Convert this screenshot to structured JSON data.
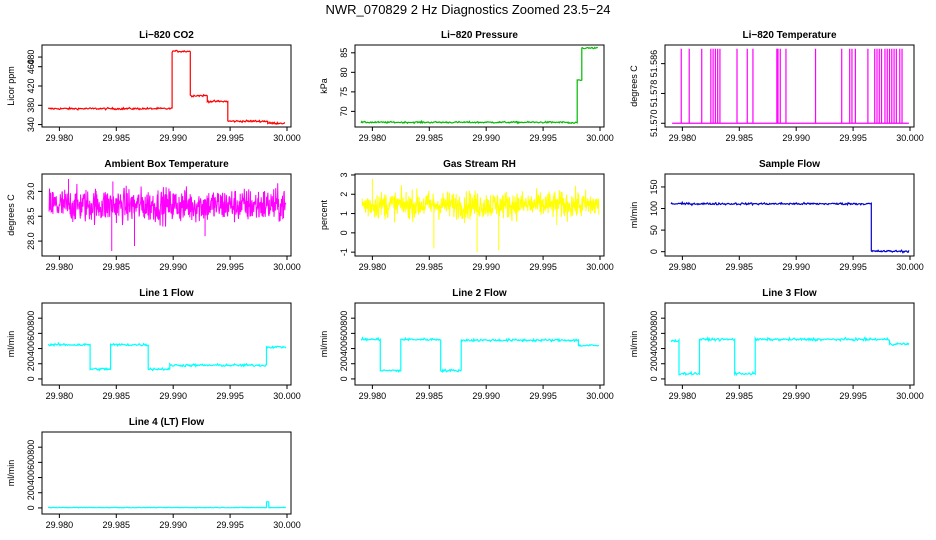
{
  "figure_title": "NWR_070829  2 Hz Diagnostics Zoomed 23.5−24",
  "chart_data": [
    {
      "type": "line",
      "title": "Li−820 CO2",
      "ylabel": "Licor ppm",
      "color": "#ff0000",
      "xlim": [
        29.979,
        30.0
      ],
      "ylim": [
        335,
        505
      ],
      "xticks": [
        "29.980",
        "29.985",
        "29.990",
        "29.995",
        "30.000"
      ],
      "yticks": [
        340,
        380,
        420,
        460,
        480
      ],
      "noise": 1,
      "segments": [
        [
          29.979,
          29.9899,
          373
        ],
        [
          29.9899,
          29.9915,
          492
        ],
        [
          29.9915,
          29.993,
          400
        ],
        [
          29.993,
          29.9948,
          388
        ],
        [
          29.9948,
          29.9983,
          347
        ],
        [
          29.9983,
          29.9998,
          343
        ]
      ]
    },
    {
      "type": "line",
      "title": "Li−820 Pressure",
      "ylabel": "kPa",
      "color": "#00bb00",
      "xlim": [
        29.979,
        30.0
      ],
      "ylim": [
        66,
        87
      ],
      "xticks": [
        "29.980",
        "29.985",
        "29.990",
        "29.995",
        "30.000"
      ],
      "yticks": [
        70,
        75,
        80,
        85
      ],
      "noise": 0.1,
      "segments": [
        [
          29.979,
          29.9972,
          67.2
        ],
        [
          29.9972,
          29.998,
          67.0
        ],
        [
          29.998,
          29.9984,
          78
        ],
        [
          29.9984,
          29.9998,
          86.2
        ]
      ]
    },
    {
      "type": "spikes",
      "title": "Li−820 Temperature",
      "ylabel": "degrees C",
      "color": "#ff00ff",
      "xlim": [
        29.979,
        30.0
      ],
      "ylim": [
        51.569,
        51.591
      ],
      "xticks": [
        "29.980",
        "29.985",
        "29.990",
        "29.995",
        "30.000"
      ],
      "yticks": [
        51.57,
        51.578,
        51.586
      ],
      "ytick_labels": [
        "51.570",
        "51.578",
        "51.586"
      ],
      "base": 51.57,
      "peak": 51.59,
      "spike_x": [
        29.9799,
        29.9806,
        29.9817,
        29.9825,
        29.9827,
        29.9829,
        29.9831,
        29.9833,
        29.9848,
        29.9857,
        29.9862,
        29.9883,
        29.9884,
        29.9886,
        29.9891,
        29.9917,
        29.994,
        29.9947,
        29.9949,
        29.9952,
        29.9963,
        29.9969,
        29.9971,
        29.9973,
        29.9975,
        29.9978,
        29.998,
        29.9982,
        29.9984,
        29.9986,
        29.9988,
        29.9991,
        29.9993
      ]
    },
    {
      "type": "noise",
      "title": "Ambient Box Temperature",
      "ylabel": "degrees C",
      "color": "#ff00ff",
      "xlim": [
        29.979,
        30.0
      ],
      "ylim": [
        27.7,
        29.35
      ],
      "xticks": [
        "29.980",
        "29.985",
        "29.990",
        "29.995",
        "30.000"
      ],
      "yticks": [
        28.0,
        28.5,
        29.0
      ],
      "ytick_labels": [
        "28.0",
        "28.5",
        "29.0"
      ],
      "mean": 28.72,
      "noise": 0.17,
      "outliers": [
        [
          29.9846,
          27.8
        ],
        [
          29.9866,
          27.9
        ],
        [
          29.9808,
          29.25
        ],
        [
          29.9847,
          29.2
        ],
        [
          29.9928,
          28.1
        ]
      ]
    },
    {
      "type": "noise",
      "title": "Gas Stream RH",
      "ylabel": "percent",
      "color": "#ffff00",
      "xlim": [
        29.979,
        30.0
      ],
      "ylim": [
        -1.2,
        3.05
      ],
      "xticks": [
        "29.980",
        "29.985",
        "29.990",
        "29.995",
        "30.000"
      ],
      "yticks": [
        -1,
        0,
        1,
        2,
        3
      ],
      "mean": 1.45,
      "noise": 0.35,
      "outliers": [
        [
          29.98,
          2.8
        ],
        [
          29.9854,
          -0.8
        ],
        [
          29.9892,
          -1.0
        ],
        [
          29.9911,
          -0.9
        ],
        [
          29.9881,
          0.5
        ],
        [
          29.9962,
          0.4
        ]
      ]
    },
    {
      "type": "line",
      "title": "Sample Flow",
      "ylabel": "ml/min",
      "color": "#0000cc",
      "xlim": [
        29.979,
        30.0
      ],
      "ylim": [
        -10,
        180
      ],
      "xticks": [
        "29.980",
        "29.985",
        "29.990",
        "29.995",
        "30.000"
      ],
      "yticks": [
        0,
        50,
        100,
        150
      ],
      "noise": 1.2,
      "segments": [
        [
          29.979,
          29.9966,
          111
        ],
        [
          29.9966,
          29.9999,
          1
        ]
      ]
    },
    {
      "type": "line",
      "title": "Line 1 Flow",
      "ylabel": "ml/min",
      "color": "#00ffff",
      "xlim": [
        29.979,
        30.0
      ],
      "ylim": [
        -80,
        1000
      ],
      "xticks": [
        "29.980",
        "29.985",
        "29.990",
        "29.995",
        "30.000"
      ],
      "yticks": [
        0,
        200,
        400,
        600,
        800
      ],
      "noise": 8,
      "segments": [
        [
          29.979,
          29.9827,
          450
        ],
        [
          29.9827,
          29.9845,
          130
        ],
        [
          29.9845,
          29.9878,
          450
        ],
        [
          29.9878,
          29.9897,
          130
        ],
        [
          29.9897,
          29.9982,
          180
        ],
        [
          29.9982,
          29.9999,
          420
        ]
      ]
    },
    {
      "type": "line",
      "title": "Line 2 Flow",
      "ylabel": "ml/min",
      "color": "#00ffff",
      "xlim": [
        29.979,
        30.0
      ],
      "ylim": [
        -80,
        1000
      ],
      "xticks": [
        "29.980",
        "29.985",
        "29.990",
        "29.995",
        "30.000"
      ],
      "yticks": [
        0,
        200,
        400,
        600,
        800
      ],
      "noise": 8,
      "segments": [
        [
          29.979,
          29.9807,
          520
        ],
        [
          29.9807,
          29.9825,
          110
        ],
        [
          29.9825,
          29.986,
          520
        ],
        [
          29.986,
          29.9878,
          110
        ],
        [
          29.9878,
          29.9981,
          510
        ],
        [
          29.9981,
          29.9999,
          440
        ]
      ]
    },
    {
      "type": "line",
      "title": "Line 3 Flow",
      "ylabel": "ml/min",
      "color": "#00ffff",
      "xlim": [
        29.979,
        30.0
      ],
      "ylim": [
        -80,
        1000
      ],
      "xticks": [
        "29.980",
        "29.985",
        "29.990",
        "29.995",
        "30.000"
      ],
      "yticks": [
        0,
        200,
        400,
        600,
        800
      ],
      "noise": 8,
      "segments": [
        [
          29.979,
          29.9797,
          500
        ],
        [
          29.9797,
          29.9815,
          70
        ],
        [
          29.9815,
          29.9846,
          520
        ],
        [
          29.9846,
          29.9864,
          70
        ],
        [
          29.9864,
          29.9982,
          520
        ],
        [
          29.9982,
          29.9999,
          460
        ]
      ]
    },
    {
      "type": "line",
      "title": "Line 4 (LT) Flow",
      "ylabel": "ml/min",
      "color": "#00ffff",
      "xlim": [
        29.979,
        30.0
      ],
      "ylim": [
        -80,
        1000
      ],
      "xticks": [
        "29.980",
        "29.985",
        "29.990",
        "29.995",
        "30.000"
      ],
      "yticks": [
        0,
        200,
        400,
        600,
        800
      ],
      "noise": 2,
      "segments": [
        [
          29.979,
          29.9982,
          5
        ],
        [
          29.9982,
          29.9984,
          80
        ],
        [
          29.9984,
          29.9999,
          5
        ]
      ]
    }
  ]
}
